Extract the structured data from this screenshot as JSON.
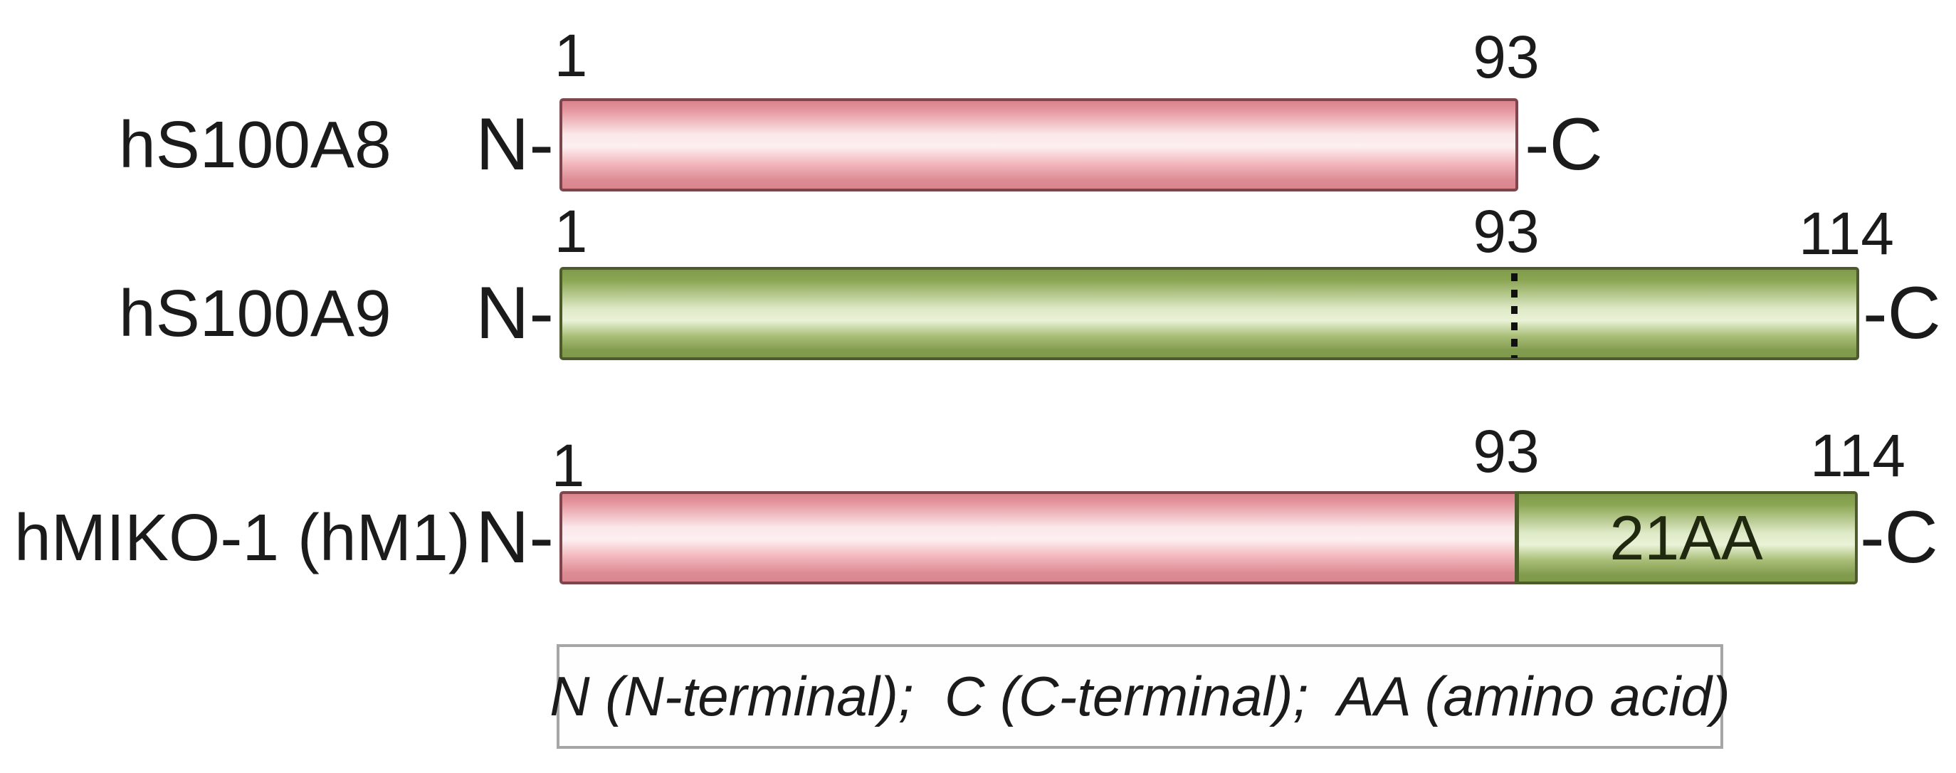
{
  "colors": {
    "pink-top": "#d8858e",
    "pink-light": "#fdeff0",
    "pink-border": "#7d464c",
    "green-top": "#7f9a4a",
    "green-light": "#e9f2d6",
    "green-border": "#4d5a2a",
    "legend-border": "#a6a6a6",
    "text": "#1b1b1b"
  },
  "rows": [
    {
      "label": "hS100A8",
      "n_label": "N-",
      "c_label": "-C",
      "ticks": [
        "1",
        "93"
      ]
    },
    {
      "label": "hS100A9",
      "n_label": "N-",
      "c_label": "-C",
      "ticks": [
        "1",
        "93",
        "114"
      ]
    },
    {
      "label": "hMIKO-1 (hM1)",
      "n_label": "N-",
      "c_label": "-C",
      "ticks": [
        "1",
        "93",
        "114"
      ],
      "segment_label": "21AA"
    }
  ],
  "legend": {
    "text": "N (N-terminal);  C (C-terminal);  AA (amino acid)"
  }
}
